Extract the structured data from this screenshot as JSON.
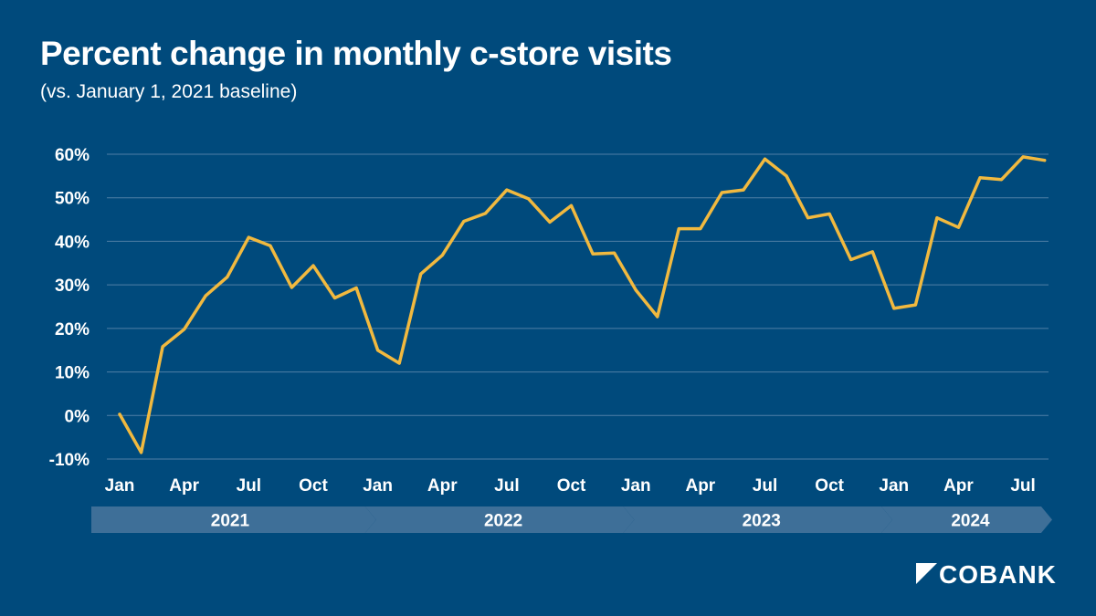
{
  "colors": {
    "background": "#004a7c",
    "line": "#f1b93f",
    "grid": "#4f7fa6",
    "year_band": "#3e6f98",
    "text": "#ffffff"
  },
  "brand": {
    "logo_text": "COBANK",
    "icon": "cobank-logo-icon"
  },
  "chart_data": {
    "type": "line",
    "title": "Percent change in monthly c-store visits",
    "subtitle": "(vs. January 1, 2021 baseline)",
    "xlabel": "",
    "ylabel": "",
    "grid": true,
    "legend": "none",
    "ylim": [
      -10,
      60
    ],
    "y_ticks": [
      60,
      50,
      40,
      30,
      20,
      10,
      0,
      -10
    ],
    "y_tick_labels": [
      "60%",
      "50%",
      "40%",
      "30%",
      "20%",
      "10%",
      "0%",
      "-10%"
    ],
    "x_tick_labels": [
      {
        "index": 0,
        "label": "Jan"
      },
      {
        "index": 3,
        "label": "Apr"
      },
      {
        "index": 6,
        "label": "Jul"
      },
      {
        "index": 9,
        "label": "Oct"
      },
      {
        "index": 12,
        "label": "Jan"
      },
      {
        "index": 15,
        "label": "Apr"
      },
      {
        "index": 18,
        "label": "Jul"
      },
      {
        "index": 21,
        "label": "Oct"
      },
      {
        "index": 24,
        "label": "Jan"
      },
      {
        "index": 27,
        "label": "Apr"
      },
      {
        "index": 30,
        "label": "Jul"
      },
      {
        "index": 33,
        "label": "Oct"
      },
      {
        "index": 36,
        "label": "Jan"
      },
      {
        "index": 39,
        "label": "Apr"
      },
      {
        "index": 42,
        "label": "Jul"
      }
    ],
    "years": [
      {
        "label": "2021",
        "start_index": 0,
        "end_index": 11
      },
      {
        "label": "2022",
        "start_index": 12,
        "end_index": 23
      },
      {
        "label": "2023",
        "start_index": 24,
        "end_index": 35
      },
      {
        "label": "2024",
        "start_index": 36,
        "end_index": 43
      }
    ],
    "series": [
      {
        "name": "Monthly c-store visits % change",
        "x": [
          "2021-01",
          "2021-02",
          "2021-03",
          "2021-04",
          "2021-05",
          "2021-06",
          "2021-07",
          "2021-08",
          "2021-09",
          "2021-10",
          "2021-11",
          "2021-12",
          "2022-01",
          "2022-02",
          "2022-03",
          "2022-04",
          "2022-05",
          "2022-06",
          "2022-07",
          "2022-08",
          "2022-09",
          "2022-10",
          "2022-11",
          "2022-12",
          "2023-01",
          "2023-02",
          "2023-03",
          "2023-04",
          "2023-05",
          "2023-06",
          "2023-07",
          "2023-08",
          "2023-09",
          "2023-10",
          "2023-11",
          "2023-12",
          "2024-01",
          "2024-02",
          "2024-03",
          "2024-04",
          "2024-05",
          "2024-06",
          "2024-07",
          "2024-08"
        ],
        "values": [
          0.3,
          -8.5,
          15.8,
          19.8,
          27.5,
          31.8,
          40.9,
          39.0,
          29.4,
          34.4,
          27.0,
          29.3,
          15.0,
          12.0,
          32.5,
          36.8,
          44.6,
          46.4,
          51.8,
          49.8,
          44.4,
          48.2,
          37.1,
          37.3,
          28.8,
          22.7,
          42.9,
          42.9,
          51.2,
          51.8,
          58.9,
          55.0,
          45.4,
          46.3,
          35.8,
          37.6,
          24.6,
          25.4,
          45.4,
          43.2,
          54.6,
          54.2,
          59.4,
          58.6
        ]
      }
    ]
  }
}
